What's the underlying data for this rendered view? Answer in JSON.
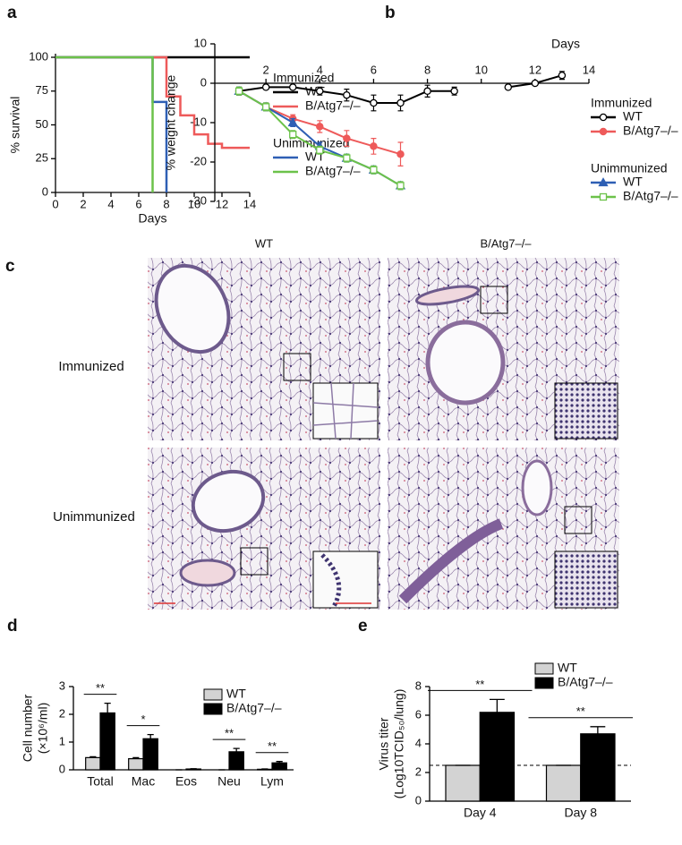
{
  "chart_data": [
    {
      "type": "step",
      "panel": "a",
      "xlabel": "Days",
      "ylabel": "% survival",
      "xlim": [
        0,
        14
      ],
      "xticks": [
        0,
        2,
        4,
        6,
        8,
        10,
        12,
        14
      ],
      "ylim": [
        0,
        100
      ],
      "yticks": [
        0,
        25,
        50,
        75,
        100
      ],
      "series": [
        {
          "name": "WT",
          "group": "Immunized",
          "color": "#000000",
          "x": [
            0,
            14
          ],
          "values": [
            100,
            100
          ]
        },
        {
          "name": "B/Atg7–/–",
          "group": "Immunized",
          "color": "#ee5a5a",
          "x": [
            0,
            8,
            9,
            10,
            11,
            12,
            14
          ],
          "values": [
            100,
            71,
            57,
            43,
            36,
            33,
            33
          ]
        },
        {
          "name": "WT",
          "group": "Unimmunized",
          "color": "#2e5fb4",
          "x": [
            0,
            7,
            8
          ],
          "values": [
            100,
            67,
            0
          ]
        },
        {
          "name": "B/Atg7–/–",
          "group": "Unimmunized",
          "color": "#6cc24a",
          "x": [
            0,
            7
          ],
          "values": [
            100,
            0
          ]
        }
      ]
    },
    {
      "type": "line",
      "panel": "b",
      "xlabel": "Days",
      "ylabel": "% weight change",
      "x_axis_at_zero": true,
      "x": [
        1,
        2,
        3,
        4,
        5,
        6,
        7,
        8,
        9,
        10,
        11,
        12,
        13
      ],
      "xlim": [
        0,
        14
      ],
      "xticks": [
        2,
        4,
        6,
        8,
        10,
        12,
        14
      ],
      "ylim": [
        -30,
        10
      ],
      "yticks": [
        -30,
        -20,
        -10,
        0,
        10
      ],
      "series": [
        {
          "name": "WT",
          "group": "Immunized",
          "color": "#000000",
          "marker": "circle-open",
          "values": [
            -2,
            -1,
            -1,
            -2,
            -3,
            -5,
            -5,
            -2,
            -2,
            null,
            -1,
            0,
            2
          ],
          "errors": [
            1,
            0.5,
            0.5,
            1,
            1.5,
            2,
            2,
            1.5,
            1,
            null,
            0.5,
            0.5,
            1
          ]
        },
        {
          "name": "B/Atg7–/–",
          "group": "Immunized",
          "color": "#ee5a5a",
          "marker": "circle",
          "values": [
            -2,
            -6,
            -9,
            -11,
            -14,
            -16,
            -18,
            null,
            null,
            null,
            null,
            null,
            null
          ],
          "errors": [
            1,
            1,
            1,
            1.5,
            2,
            2,
            3,
            null,
            null,
            null,
            null,
            null,
            null
          ]
        },
        {
          "name": "WT",
          "group": "Unimmunized",
          "color": "#2e5fb4",
          "marker": "triangle",
          "values": [
            -2,
            -6,
            -10,
            -16,
            -19,
            -22,
            -26,
            null,
            null,
            null,
            null,
            null,
            null
          ],
          "errors": [
            1,
            1,
            1,
            1,
            1,
            1,
            1,
            null,
            null,
            null,
            null,
            null,
            null
          ]
        },
        {
          "name": "B/Atg7–/–",
          "group": "Unimmunized",
          "color": "#6cc24a",
          "marker": "square-open",
          "values": [
            -2,
            -6,
            -13,
            -17,
            -19,
            -22,
            -26,
            null,
            null,
            null,
            null,
            null,
            null
          ],
          "errors": [
            1,
            1,
            1,
            1,
            1,
            1,
            1,
            null,
            null,
            null,
            null,
            null,
            null
          ]
        }
      ]
    },
    {
      "type": "bar",
      "panel": "d",
      "ylabel": [
        "Cell number",
        "(×10⁶/ml)"
      ],
      "categories": [
        "Total",
        "Mac",
        "Eos",
        "Neu",
        "Lym"
      ],
      "ylim": [
        0,
        3
      ],
      "yticks": [
        0,
        1,
        2,
        3
      ],
      "significance": [
        "**",
        "*",
        null,
        "**",
        "**"
      ],
      "series": [
        {
          "name": "WT",
          "color": "#d3d3d3",
          "values": [
            0.44,
            0.4,
            0,
            0,
            0.02
          ],
          "errors": [
            0.03,
            0.04,
            0,
            0,
            0.01
          ]
        },
        {
          "name": "B/Atg7–/–",
          "color": "#000000",
          "values": [
            2.05,
            1.12,
            0.03,
            0.65,
            0.25
          ],
          "errors": [
            0.35,
            0.15,
            0.01,
            0.12,
            0.05
          ]
        }
      ]
    },
    {
      "type": "bar",
      "panel": "e",
      "ylabel": [
        "Virus titer",
        "(Log10TCID₅₀/lung)"
      ],
      "categories": [
        "Day 4",
        "Day 8"
      ],
      "ylim": [
        0,
        8
      ],
      "yticks": [
        0,
        2,
        4,
        6,
        8
      ],
      "reference_line": 2.5,
      "significance": [
        "**",
        "**"
      ],
      "series": [
        {
          "name": "WT",
          "color": "#d3d3d3",
          "values": [
            2.5,
            2.5
          ],
          "errors": [
            0,
            0
          ]
        },
        {
          "name": "B/Atg7–/–",
          "color": "#000000",
          "values": [
            6.2,
            4.7
          ],
          "errors": [
            0.9,
            0.5
          ]
        }
      ]
    }
  ],
  "histology": {
    "panel": "c",
    "columns": [
      "WT",
      "B/Atg7–/–"
    ],
    "rows": [
      "Immunized",
      "Unimmunized"
    ]
  }
}
